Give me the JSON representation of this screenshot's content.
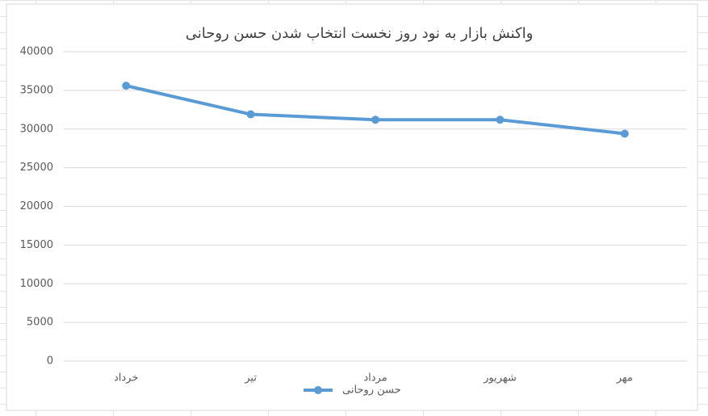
{
  "chart_data": {
    "type": "line",
    "title": "واکنش بازار به نود روز نخست انتخاب شدن حسن روحانی",
    "categories": [
      "خرداد",
      "تیر",
      "مرداد",
      "شهریور",
      "مهر"
    ],
    "series": [
      {
        "name": "حسن روحانی",
        "color": "#5b9bd5",
        "values": [
          35600,
          31900,
          31200,
          31200,
          29400
        ]
      }
    ],
    "ylim": [
      0,
      40000
    ],
    "yticks": [
      0,
      5000,
      10000,
      15000,
      20000,
      25000,
      30000,
      35000,
      40000
    ],
    "grid": true,
    "legend": "bottom"
  }
}
